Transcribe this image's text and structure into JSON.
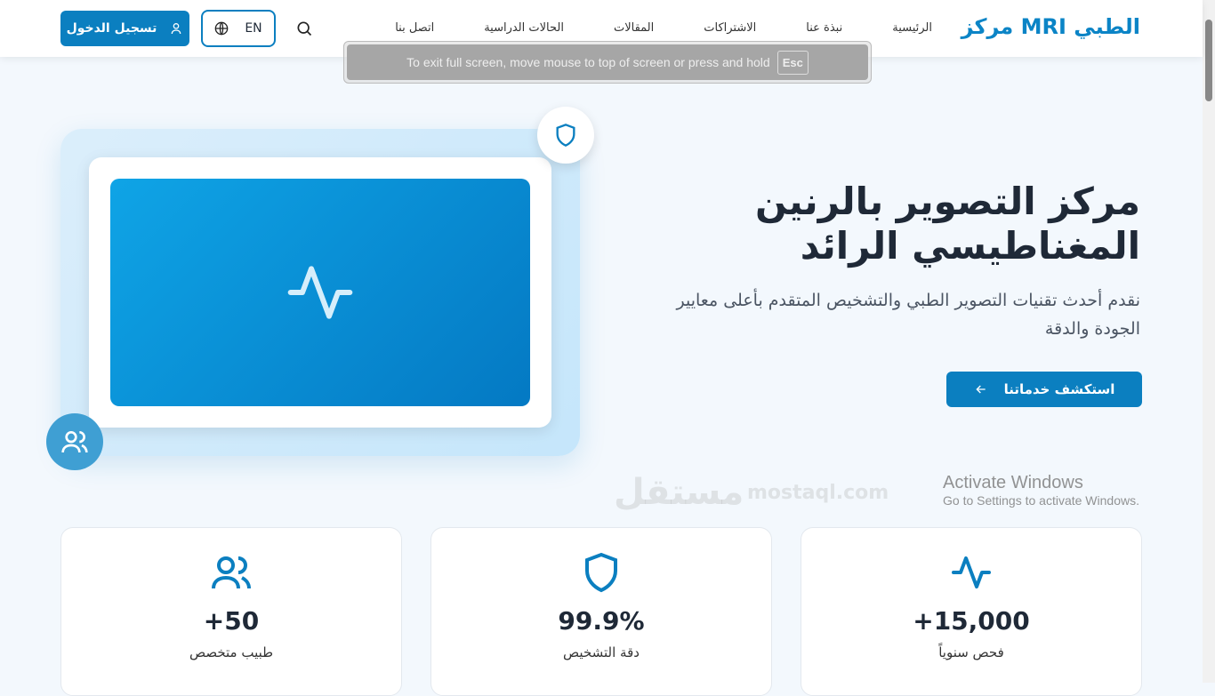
{
  "header": {
    "logo": "مركز MRI الطبي",
    "nav": [
      "الرئيسية",
      "نبذة عنا",
      "الاشتراكات",
      "المقالات",
      "الحالات الدراسية",
      "اتصل بنا"
    ],
    "lang": "EN",
    "login": "تسجيل الدخول"
  },
  "toast": {
    "text": "To exit full screen, move mouse to top of screen or press and hold",
    "key": "Esc"
  },
  "hero": {
    "title": "مركز التصوير بالرنين المغناطيسي الرائد",
    "subtitle": "نقدم أحدث تقنيات التصوير الطبي والتشخيص المتقدم بأعلى معايير الجودة والدقة",
    "cta": "استكشف خدماتنا"
  },
  "stats": [
    {
      "value": "+15,000",
      "label": "فحص سنوياً",
      "icon": "activity-icon"
    },
    {
      "value": "99.9%",
      "label": "دقة التشخيص",
      "icon": "shield-icon"
    },
    {
      "value": "+50",
      "label": "طبيب متخصص",
      "icon": "users-icon"
    }
  ],
  "overlay": {
    "watermark": "مستقل",
    "watermark_url": "mostaql.com",
    "activate_title": "Activate Windows",
    "activate_sub": "Go to Settings to activate Windows."
  },
  "colors": {
    "primary": "#0b7fc0"
  }
}
